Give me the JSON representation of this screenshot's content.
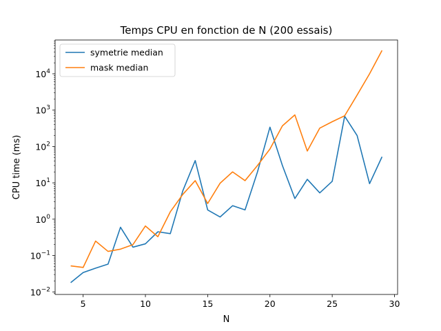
{
  "chart_data": {
    "type": "line",
    "title": "Temps CPU en fonction de N (200 essais)",
    "xlabel": "N",
    "ylabel": "CPU time (ms)",
    "xlim": [
      2.75,
      30.25
    ],
    "ylim": [
      0.0085,
      85000
    ],
    "yscale": "log",
    "xticks": [
      5,
      10,
      15,
      20,
      25,
      30
    ],
    "yticks": [
      {
        "value": 0.01,
        "label": "10",
        "exp": "−2"
      },
      {
        "value": 0.1,
        "label": "10",
        "exp": "−1"
      },
      {
        "value": 1,
        "label": "10",
        "exp": "0"
      },
      {
        "value": 10,
        "label": "10",
        "exp": "1"
      },
      {
        "value": 100,
        "label": "10",
        "exp": "2"
      },
      {
        "value": 1000,
        "label": "10",
        "exp": "3"
      },
      {
        "value": 10000,
        "label": "10",
        "exp": "4"
      }
    ],
    "legend_position": "top-left",
    "grid": false,
    "series": [
      {
        "name": "symetrie median",
        "color": "#1f77b4",
        "x": [
          4,
          5,
          6,
          7,
          8,
          9,
          10,
          11,
          12,
          13,
          14,
          15,
          16,
          17,
          18,
          19,
          20,
          21,
          22,
          23,
          24,
          25,
          26,
          27,
          28,
          29
        ],
        "values": [
          0.018,
          0.034,
          0.045,
          0.058,
          0.6,
          0.17,
          0.21,
          0.45,
          0.4,
          6,
          41,
          1.8,
          1.15,
          2.35,
          1.8,
          20,
          340,
          30,
          3.7,
          12.5,
          5.3,
          11,
          680,
          200,
          9.5,
          52
        ]
      },
      {
        "name": "mask median",
        "color": "#ff7f0e",
        "x": [
          4,
          5,
          6,
          7,
          8,
          9,
          10,
          11,
          12,
          13,
          14,
          15,
          16,
          17,
          18,
          19,
          20,
          21,
          22,
          23,
          24,
          25,
          26,
          27,
          28,
          29
        ],
        "values": [
          0.052,
          0.047,
          0.25,
          0.13,
          0.15,
          0.2,
          0.65,
          0.33,
          1.6,
          4.8,
          11.5,
          2.7,
          9.8,
          20,
          11.5,
          30,
          85,
          370,
          740,
          75,
          320,
          480,
          700,
          2600,
          10000,
          44000
        ]
      }
    ]
  }
}
